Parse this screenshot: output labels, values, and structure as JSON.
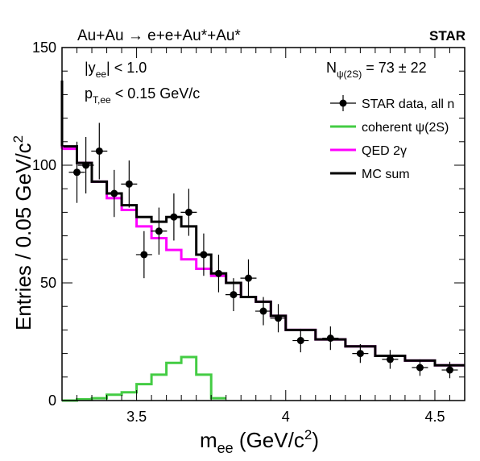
{
  "chart_data": {
    "type": "line",
    "process": "Au+Au → e+e+Au*+Au*",
    "experiment": "STAR",
    "xlabel": "m_ee (GeV/c²)",
    "ylabel": "Entries / 0.05 GeV/c²",
    "xlim": [
      3.25,
      4.6
    ],
    "ylim": [
      0,
      150
    ],
    "x_ticks": [
      3.5,
      4,
      4.5
    ],
    "x_tick_labels": [
      "3.5",
      "4",
      "4.5"
    ],
    "y_ticks": [
      0,
      50,
      100,
      150
    ],
    "y_tick_labels": [
      "0",
      "50",
      "100",
      "150"
    ],
    "annotations": {
      "rapidity_cut": "|y_ee| < 1.0",
      "pt_cut": "p_T,ee < 0.15 GeV/c",
      "yield": "N_ψ(2S) = 73 ± 22"
    },
    "legend": [
      {
        "label": "STAR data, all n",
        "marker": "point-with-errorbar",
        "color": "#000000"
      },
      {
        "label": "coherent ψ(2S)",
        "marker": "line",
        "color": "#44cc44"
      },
      {
        "label": "QED 2γ",
        "marker": "line",
        "color": "#ff00ff"
      },
      {
        "label": "MC sum",
        "marker": "line",
        "color": "#000000"
      }
    ],
    "data_points": [
      {
        "x": 3.3,
        "y": 97,
        "err": 13
      },
      {
        "x": 3.33,
        "y": 100,
        "err": 12
      },
      {
        "x": 3.375,
        "y": 106,
        "err": 12
      },
      {
        "x": 3.425,
        "y": 88,
        "err": 10
      },
      {
        "x": 3.475,
        "y": 92,
        "err": 10
      },
      {
        "x": 3.525,
        "y": 62,
        "err": 10
      },
      {
        "x": 3.575,
        "y": 72,
        "err": 10
      },
      {
        "x": 3.625,
        "y": 78,
        "err": 10
      },
      {
        "x": 3.675,
        "y": 80,
        "err": 10
      },
      {
        "x": 3.725,
        "y": 62,
        "err": 9
      },
      {
        "x": 3.775,
        "y": 54,
        "err": 8
      },
      {
        "x": 3.825,
        "y": 45,
        "err": 7
      },
      {
        "x": 3.875,
        "y": 52,
        "err": 8
      },
      {
        "x": 3.925,
        "y": 38,
        "err": 6
      },
      {
        "x": 3.975,
        "y": 35,
        "err": 6
      },
      {
        "x": 4.05,
        "y": 25.5,
        "err": 5
      },
      {
        "x": 4.15,
        "y": 26.5,
        "err": 5
      },
      {
        "x": 4.25,
        "y": 20,
        "err": 4
      },
      {
        "x": 4.35,
        "y": 17.5,
        "err": 4
      },
      {
        "x": 4.45,
        "y": 14,
        "err": 3.5
      },
      {
        "x": 4.55,
        "y": 13,
        "err": 3.5
      }
    ],
    "series": [
      {
        "name": "QED 2γ",
        "color": "#ff00ff",
        "style": "step",
        "edges": [
          3.25,
          3.3,
          3.35,
          3.4,
          3.45,
          3.5,
          3.55,
          3.6,
          3.65,
          3.7,
          3.75,
          3.8,
          3.85,
          3.9,
          3.95,
          4.0,
          4.1,
          4.2,
          4.3,
          4.4,
          4.5,
          4.6
        ],
        "values": [
          107,
          101,
          93,
          86,
          81,
          74,
          69,
          64,
          60,
          56,
          53,
          50,
          44,
          42,
          36,
          30,
          26,
          23,
          19,
          17,
          15
        ]
      },
      {
        "name": "MC sum",
        "color": "#000000",
        "style": "step",
        "edges": [
          3.25,
          3.3,
          3.35,
          3.4,
          3.45,
          3.5,
          3.55,
          3.6,
          3.65,
          3.7,
          3.75,
          3.8,
          3.85,
          3.9,
          3.95,
          4.0,
          4.1,
          4.2,
          4.3,
          4.4,
          4.5,
          4.6
        ],
        "values": [
          108,
          101,
          93,
          88,
          83,
          78,
          76,
          78,
          74,
          62,
          54,
          50,
          44,
          42,
          36,
          30,
          26,
          23,
          19,
          17,
          15
        ]
      },
      {
        "name": "coherent ψ(2S)",
        "color": "#44cc44",
        "style": "step",
        "edges": [
          3.25,
          3.3,
          3.35,
          3.4,
          3.45,
          3.5,
          3.55,
          3.6,
          3.65,
          3.7,
          3.75,
          3.8
        ],
        "values": [
          0,
          0.5,
          1,
          2.5,
          3.5,
          7,
          11,
          16,
          18.5,
          11,
          1
        ]
      }
    ],
    "edge_extensions": [
      {
        "series": "QED 2γ",
        "x": 3.25,
        "y_from": 107,
        "y_to": 121
      },
      {
        "series": "MC sum",
        "x": 3.25,
        "y_from": 108,
        "y_to": 136
      }
    ]
  }
}
